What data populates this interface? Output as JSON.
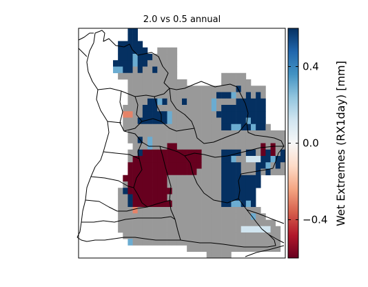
{
  "title": "2.0 vs 0.5 annual",
  "colorbar": {
    "label": "Wet Extremes (RX1day) [mm]",
    "ticks": [
      {
        "value": 0.4,
        "text": "0.4"
      },
      {
        "value": 0.0,
        "text": "0.0"
      },
      {
        "value": -0.4,
        "text": "−0.4"
      }
    ],
    "range": [
      -0.6,
      0.6
    ],
    "colormap": "RdBu",
    "colors": [
      "#67001f",
      "#b2182b",
      "#d6604d",
      "#f4a582",
      "#fddbc7",
      "#f7f7f7",
      "#d1e5f0",
      "#92c5de",
      "#4393c3",
      "#2166ac",
      "#053061"
    ]
  },
  "colors": {
    "no_data": "#999999",
    "border": "#000000",
    "background": "#ffffff"
  },
  "map": {
    "grid_rows": [
      "..........ZZ..............................",
      "..........ZZ..............................",
      "........ZZZZZ.............................",
      "........ZZZZZZ..GGGG......................",
      "........ZZZYZZZGGGGG......................",
      ".......ZZZZYZZGGGGGG......................",
      ".......YYZZGZGGZGGGG......................",
      "........GGGGGGGGGGGG.........GGGGG........",
      "..........GGGGGGGGGGGG.......GGGGGG.......",
      "..........GGGGGGGGGGGGGGGGGGGGGGZGGGGG....",
      "..........GGGGGGGGGGGGGGGGGGZZZYGGZGZG....",
      "..........GGGGZZYZGGGZGGGGGYGGGGZZZZZZ....",
      ".........GGGGZZZGGGGGGGGGGGYGZZZZZZZZZ....",
      ".........OOGGZZZZZYGGGGGGGGGZZZZZZZZZZ....",
      ".........GGGZZZZZZYGGGGGGGGGGZZZZZYZZZ....",
      ".........GGGGGGGGGGGGGGGGGGGGZZYYZZYZZG...",
      "..........GGGGGGGGGGGGGGGGGGGGGGGGGGGGGGGG",
      "..........GGZGYGGGGGGGGGGGGGGGGGGGGGGGGGGG",
      "...........GGGYGGGRRGGGGGGGGGGGGGGGGGRGRGG",
      "..........GGZRRRRRRRRRRRRGGGGZZZZGZZGRZRGZ",
      "..........GRRRRRRRRRRRRRRGGGGZZYGGLLLZZYZZ",
      "..........RRRRRRRRRRRRRRRGGGGZZZZGGGZZYGZG",
      "..........RRRRRRRRRRRRRRGGGGGZZZZGGGZGZGGG",
      ".........RRRRRRRRRGGGGGGGGGGGZZZZZZZZ.....",
      ".........GRRRRRRRRGGGGGGGGGGGZZZZZZZZ.....",
      "........GZRRRRRRRRRGGGGGGGGGGZZZZZZZ......",
      "........GGZRRRRRRRGGGGGGGGGGGZZZZZZZ......",
      "........GGZRRRRRRRRGGGGGGGGGGZZYYZYZ......",
      "........GGGOGGGGGGGGGGGGGGGGGGGGGGGGG.....",
      "........GGGGGGGGGGGGGGGGGGGGGGGGGGGYGG....",
      "........GGGGGGGGGGGGGGGGGGGGGGGGGGGGGGGG..",
      "........GGGGGGGGGGGGGGGGGGGGGGGGGLLLLLLGG.",
      ".........GGGGGGGGGGGGGGGGGGGGGGGGGGGGGGGG.",
      "..........YGGGGGGGGGGGGGGGGGGGGGGGGGGGGGG.",
      "......................GGGGGGGGGGGGGGGGGGG.",
      "..........................GGGGG..........."
    ],
    "cell_values": {
      "Z": 0.6,
      "Y": 0.3,
      "L": 0.12,
      "O": -0.3,
      "R": -0.6,
      "G": null
    }
  }
}
